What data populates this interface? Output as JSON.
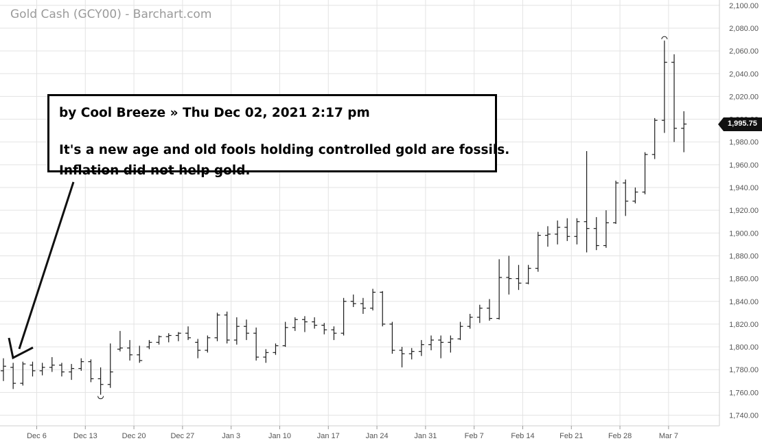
{
  "title": "Gold Cash (GCY00) - Barchart.com",
  "note": {
    "header": "by Cool Breeze » Thu Dec 02, 2021 2:17 pm",
    "line1": "It's a new age and old fools holding controlled gold are fossils.",
    "line2": "Inflation did not help gold."
  },
  "last_price_label": "1,995.75",
  "colors": {
    "bars": "#1a1a1a",
    "grid": "#e3e3e3",
    "axis_text": "#555555",
    "tag_bg": "#111111"
  },
  "chart_data": {
    "type": "ohlc",
    "title": "Gold Cash (GCY00) - Barchart.com",
    "ylim": [
      1730,
      2105
    ],
    "y_ticks": [
      1740,
      1760,
      1780,
      1800,
      1820,
      1840,
      1860,
      1880,
      1900,
      1920,
      1940,
      1960,
      1980,
      2000,
      2020,
      2040,
      2060,
      2080,
      2100
    ],
    "y_tick_labels": [
      "1,740.00",
      "1,760.00",
      "1,780.00",
      "1,800.00",
      "1,820.00",
      "1,840.00",
      "1,860.00",
      "1,880.00",
      "1,900.00",
      "1,920.00",
      "1,940.00",
      "1,960.00",
      "1,980.00",
      "2,000.00",
      "2,020.00",
      "2,040.00",
      "2,060.00",
      "2,080.00",
      "2,100.00"
    ],
    "x_labels": [
      {
        "label": "Dec 6",
        "index": 3
      },
      {
        "label": "Dec 13",
        "index": 8
      },
      {
        "label": "Dec 20",
        "index": 13
      },
      {
        "label": "Dec 27",
        "index": 18
      },
      {
        "label": "Jan 3",
        "index": 23
      },
      {
        "label": "Jan 10",
        "index": 28
      },
      {
        "label": "Jan 17",
        "index": 33
      },
      {
        "label": "Jan 24",
        "index": 38
      },
      {
        "label": "Jan 31",
        "index": 43
      },
      {
        "label": "Feb 7",
        "index": 48
      },
      {
        "label": "Feb 14",
        "index": 53
      },
      {
        "label": "Feb 21",
        "index": 58
      },
      {
        "label": "Feb 28",
        "index": 63
      },
      {
        "label": "Mar 7",
        "index": 68
      }
    ],
    "bars": [
      {
        "o": 1779,
        "h": 1790,
        "l": 1770,
        "c": 1783
      },
      {
        "o": 1782,
        "h": 1786,
        "l": 1763,
        "c": 1768
      },
      {
        "o": 1768,
        "h": 1787,
        "l": 1766,
        "c": 1785
      },
      {
        "o": 1784,
        "h": 1787,
        "l": 1774,
        "c": 1779
      },
      {
        "o": 1779,
        "h": 1786,
        "l": 1775,
        "c": 1782
      },
      {
        "o": 1782,
        "h": 1791,
        "l": 1778,
        "c": 1784
      },
      {
        "o": 1784,
        "h": 1786,
        "l": 1774,
        "c": 1778
      },
      {
        "o": 1778,
        "h": 1785,
        "l": 1771,
        "c": 1781
      },
      {
        "o": 1781,
        "h": 1790,
        "l": 1779,
        "c": 1787
      },
      {
        "o": 1787,
        "h": 1789,
        "l": 1769,
        "c": 1772
      },
      {
        "o": 1772,
        "h": 1782,
        "l": 1758,
        "c": 1767
      },
      {
        "o": 1767,
        "h": 1803,
        "l": 1764,
        "c": 1778
      },
      {
        "o": 1798,
        "h": 1814,
        "l": 1796,
        "c": 1799
      },
      {
        "o": 1799,
        "h": 1806,
        "l": 1788,
        "c": 1793
      },
      {
        "o": 1793,
        "h": 1801,
        "l": 1786,
        "c": 1788
      },
      {
        "o": 1800,
        "h": 1806,
        "l": 1798,
        "c": 1804
      },
      {
        "o": 1804,
        "h": 1810,
        "l": 1802,
        "c": 1809
      },
      {
        "o": 1809,
        "h": 1812,
        "l": 1804,
        "c": 1810
      },
      {
        "o": 1810,
        "h": 1813,
        "l": 1805,
        "c": 1812
      },
      {
        "o": 1812,
        "h": 1818,
        "l": 1806,
        "c": 1808
      },
      {
        "o": 1804,
        "h": 1807,
        "l": 1790,
        "c": 1797
      },
      {
        "o": 1797,
        "h": 1810,
        "l": 1795,
        "c": 1808
      },
      {
        "o": 1808,
        "h": 1830,
        "l": 1805,
        "c": 1828
      },
      {
        "o": 1828,
        "h": 1831,
        "l": 1803,
        "c": 1806
      },
      {
        "o": 1806,
        "h": 1826,
        "l": 1802,
        "c": 1818
      },
      {
        "o": 1818,
        "h": 1824,
        "l": 1806,
        "c": 1812
      },
      {
        "o": 1812,
        "h": 1817,
        "l": 1788,
        "c": 1791
      },
      {
        "o": 1791,
        "h": 1798,
        "l": 1786,
        "c": 1795
      },
      {
        "o": 1795,
        "h": 1803,
        "l": 1793,
        "c": 1801
      },
      {
        "o": 1801,
        "h": 1822,
        "l": 1800,
        "c": 1817
      },
      {
        "o": 1817,
        "h": 1826,
        "l": 1814,
        "c": 1824
      },
      {
        "o": 1824,
        "h": 1827,
        "l": 1813,
        "c": 1822
      },
      {
        "o": 1822,
        "h": 1826,
        "l": 1816,
        "c": 1819
      },
      {
        "o": 1819,
        "h": 1821,
        "l": 1811,
        "c": 1815
      },
      {
        "o": 1815,
        "h": 1818,
        "l": 1806,
        "c": 1812
      },
      {
        "o": 1812,
        "h": 1843,
        "l": 1810,
        "c": 1840
      },
      {
        "o": 1840,
        "h": 1846,
        "l": 1835,
        "c": 1838
      },
      {
        "o": 1838,
        "h": 1843,
        "l": 1829,
        "c": 1834
      },
      {
        "o": 1834,
        "h": 1851,
        "l": 1832,
        "c": 1848
      },
      {
        "o": 1848,
        "h": 1849,
        "l": 1818,
        "c": 1820
      },
      {
        "o": 1820,
        "h": 1822,
        "l": 1794,
        "c": 1797
      },
      {
        "o": 1797,
        "h": 1800,
        "l": 1782,
        "c": 1794
      },
      {
        "o": 1794,
        "h": 1799,
        "l": 1789,
        "c": 1796
      },
      {
        "o": 1796,
        "h": 1806,
        "l": 1792,
        "c": 1802
      },
      {
        "o": 1802,
        "h": 1810,
        "l": 1797,
        "c": 1806
      },
      {
        "o": 1806,
        "h": 1810,
        "l": 1790,
        "c": 1804
      },
      {
        "o": 1804,
        "h": 1810,
        "l": 1795,
        "c": 1807
      },
      {
        "o": 1807,
        "h": 1822,
        "l": 1806,
        "c": 1818
      },
      {
        "o": 1818,
        "h": 1829,
        "l": 1816,
        "c": 1826
      },
      {
        "o": 1826,
        "h": 1837,
        "l": 1821,
        "c": 1834
      },
      {
        "o": 1834,
        "h": 1842,
        "l": 1823,
        "c": 1825
      },
      {
        "o": 1825,
        "h": 1877,
        "l": 1824,
        "c": 1861
      },
      {
        "o": 1861,
        "h": 1880,
        "l": 1846,
        "c": 1860
      },
      {
        "o": 1860,
        "h": 1872,
        "l": 1850,
        "c": 1856
      },
      {
        "o": 1856,
        "h": 1872,
        "l": 1855,
        "c": 1869
      },
      {
        "o": 1869,
        "h": 1901,
        "l": 1866,
        "c": 1898
      },
      {
        "o": 1898,
        "h": 1906,
        "l": 1888,
        "c": 1899
      },
      {
        "o": 1899,
        "h": 1911,
        "l": 1890,
        "c": 1905
      },
      {
        "o": 1905,
        "h": 1913,
        "l": 1893,
        "c": 1897
      },
      {
        "o": 1897,
        "h": 1913,
        "l": 1890,
        "c": 1910
      },
      {
        "o": 1910,
        "h": 1972,
        "l": 1883,
        "c": 1904
      },
      {
        "o": 1904,
        "h": 1914,
        "l": 1885,
        "c": 1889
      },
      {
        "o": 1889,
        "h": 1920,
        "l": 1887,
        "c": 1909
      },
      {
        "o": 1909,
        "h": 1946,
        "l": 1908,
        "c": 1944
      },
      {
        "o": 1944,
        "h": 1947,
        "l": 1915,
        "c": 1928
      },
      {
        "o": 1928,
        "h": 1940,
        "l": 1926,
        "c": 1936
      },
      {
        "o": 1936,
        "h": 1971,
        "l": 1934,
        "c": 1969
      },
      {
        "o": 1969,
        "h": 2001,
        "l": 1965,
        "c": 1999
      },
      {
        "o": 1999,
        "h": 2069,
        "l": 1988,
        "c": 2050
      },
      {
        "o": 2050,
        "h": 2057,
        "l": 1980,
        "c": 1992
      },
      {
        "o": 1992,
        "h": 2007,
        "l": 1971,
        "c": 1995.75
      }
    ],
    "last_price": 1995.75
  }
}
